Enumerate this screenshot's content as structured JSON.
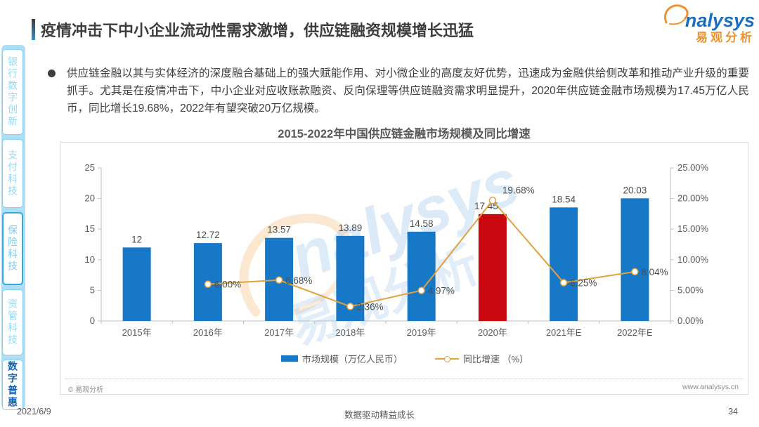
{
  "page": {
    "title": "疫情冲击下中小企业流动性需求激增，供应链融资规模增长迅猛",
    "date": "2021/6/9",
    "slogan": "数据驱动精益成长",
    "page_number": "34"
  },
  "logo": {
    "brand_text": "nalysys",
    "brand_cn": "易观分析"
  },
  "sidebar": {
    "items": [
      {
        "label": "银行数字创新",
        "active": false
      },
      {
        "label": "支付科技",
        "active": false
      },
      {
        "label": "保险科技",
        "active": true
      },
      {
        "label": "资管科技",
        "active": false
      },
      {
        "label": "数字普惠",
        "active": true
      }
    ]
  },
  "body": {
    "bullet_text": "供应链金融以其与实体经济的深度融合基础上的强大赋能作用、对小微企业的高度友好优势，迅速成为金融供给侧改革和推动产业升级的重要抓手。尤其是在疫情冲击下，中小企业对应收账款融资、反向保理等供应链融资需求明显提升，2020年供应链金融市场规模为17.45万亿人民币，同比增长19.68%，2022年有望突破20万亿规模。"
  },
  "chart_box": {
    "footer_left": "© 易观分析",
    "footer_right": "www.analysys.cn",
    "watermark_en": "nalysys",
    "watermark_cn": "易观分析"
  },
  "chart_data": {
    "type": "bar",
    "title": "2015-2022年中国供应链金融市场规模及同比增速",
    "categories": [
      "2015年",
      "2016年",
      "2017年",
      "2018年",
      "2019年",
      "2020年",
      "2021年E",
      "2022年E"
    ],
    "series": [
      {
        "name": "市场规模（万亿人民币）",
        "type": "bar",
        "values": [
          12,
          12.72,
          13.57,
          13.89,
          14.58,
          17.45,
          18.54,
          20.03
        ],
        "labels": [
          "12",
          "12.72",
          "13.57",
          "13.89",
          "14.58",
          "17.45",
          "18.54",
          "20.03"
        ],
        "color": "#1778C8",
        "highlight_index": 5,
        "highlight_color": "#C9080F"
      },
      {
        "name": "同比增速 （%）",
        "type": "line",
        "values": [
          null,
          6.0,
          6.68,
          2.36,
          4.97,
          19.68,
          6.25,
          8.04
        ],
        "labels": [
          "",
          "6.00%",
          "6.68%",
          "2.36%",
          "4.97%",
          "19.68%",
          "6.25%",
          "8.04%"
        ],
        "color": "#E3A13C"
      }
    ],
    "left_axis": {
      "ticks": [
        "0",
        "5",
        "10",
        "15",
        "20",
        "25"
      ],
      "min": 0,
      "max": 25
    },
    "right_axis": {
      "ticks": [
        "0.00%",
        "5.00%",
        "10.00%",
        "15.00%",
        "20.00%",
        "25.00%"
      ],
      "min": 0,
      "max": 25
    },
    "legend_position": "bottom",
    "grid": false
  }
}
